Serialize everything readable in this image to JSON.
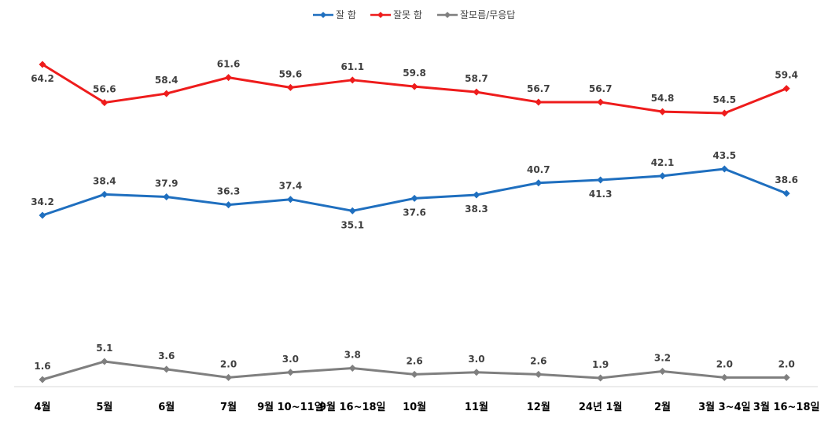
{
  "chart_data": {
    "type": "line",
    "categories": [
      "4월",
      "5월",
      "6월",
      "7월",
      "9월 10~11일",
      "9월 16~18일",
      "10월",
      "11월",
      "12월",
      "24년 1월",
      "2월",
      "3월 3~4일",
      "3월 16~18일"
    ],
    "series": [
      {
        "name": "잘 함",
        "color": "#1f6fbf",
        "values": [
          34.2,
          38.4,
          37.9,
          36.3,
          37.4,
          35.1,
          37.6,
          38.3,
          40.7,
          41.3,
          42.1,
          43.5,
          38.6
        ],
        "labels": [
          "34.2",
          "38.4",
          "37.9",
          "36.3",
          "37.4",
          "35.1",
          "37.6",
          "38.3",
          "40.7",
          "41.3",
          "42.1",
          "43.5",
          "38.6"
        ]
      },
      {
        "name": "잘못 함",
        "color": "#ee1c1c",
        "values": [
          64.2,
          56.6,
          58.4,
          61.6,
          59.6,
          61.1,
          59.8,
          58.7,
          56.7,
          56.7,
          54.8,
          54.5,
          59.4
        ],
        "labels": [
          "64.2",
          "56.6",
          "58.4",
          "61.6",
          "59.6",
          "61.1",
          "59.8",
          "58.7",
          "56.7",
          "56.7",
          "54.8",
          "54.5",
          "59.4"
        ]
      },
      {
        "name": "잘모름/무응답",
        "color": "#7f7f7f",
        "values": [
          1.6,
          5.1,
          3.6,
          2.0,
          3.0,
          3.8,
          2.6,
          3.0,
          2.6,
          1.9,
          3.2,
          2.0,
          2.0
        ],
        "labels": [
          "1.6",
          "5.1",
          "3.6",
          "2.0",
          "3.0",
          "3.8",
          "2.6",
          "3.0",
          "2.6",
          "1.9",
          "3.2",
          "2.0",
          "2.0"
        ]
      }
    ],
    "title": "",
    "xlabel": "",
    "ylabel": "",
    "legend": "top-center",
    "grid": false,
    "x_axis_line": true
  }
}
